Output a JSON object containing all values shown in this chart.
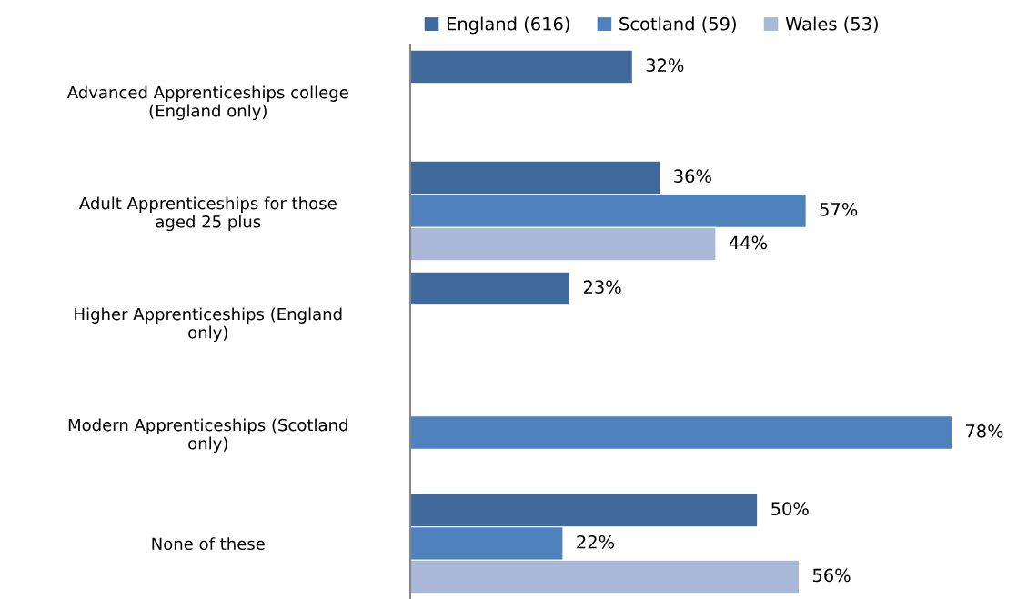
{
  "chart_data": {
    "type": "bar",
    "orientation": "horizontal",
    "categories": [
      "Advanced Apprenticeships college\n(England only)",
      "Adult Apprenticeships for those\naged 25 plus",
      "Higher Apprenticeships (England\nonly)",
      "Modern Apprenticeships (Scotland\nonly)",
      "None of these"
    ],
    "series": [
      {
        "name": "England (616)",
        "color": "#416a9c",
        "values": [
          32,
          36,
          23,
          null,
          50
        ],
        "value_labels": [
          "32%",
          "36%",
          "23%",
          null,
          "50%"
        ]
      },
      {
        "name": "Scotland (59)",
        "color": "#4f81bd",
        "values": [
          null,
          57,
          null,
          78,
          22
        ],
        "value_labels": [
          null,
          "57%",
          null,
          "78%",
          "22%"
        ]
      },
      {
        "name": "Wales (53)",
        "color": "#aab9d9",
        "values": [
          null,
          44,
          null,
          null,
          56
        ],
        "value_labels": [
          null,
          "44%",
          null,
          null,
          "56%"
        ]
      }
    ],
    "tick_labels": "y",
    "legend": "top",
    "grid": false
  }
}
